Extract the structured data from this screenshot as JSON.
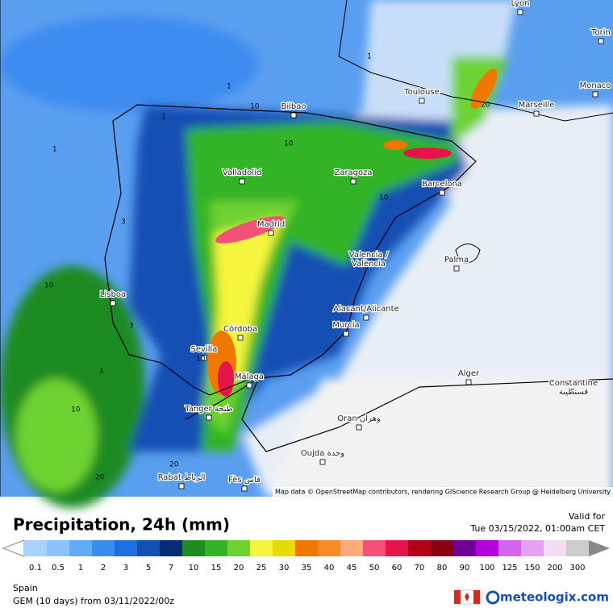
{
  "header": {
    "title": "Precipitation, 24h (mm)",
    "valid_label": "Valid for",
    "valid_time": "Tue 03/15/2022, 01:00am CET"
  },
  "map": {
    "attribution": "Map data © OpenStreetMap contributors, rendering GIScience Research Group @ Heidelberg University",
    "cities": [
      "Lyon",
      "Torin",
      "Monaco",
      "Toulouse",
      "Marseille",
      "Bilbao",
      "Valladolid",
      "Zaragoza",
      "Barcelona",
      "Madrid",
      "Palma",
      "Valencia /\nValència",
      "Lisboa",
      "Alacant/Alicante",
      "Murcia",
      "Córdoba",
      "Sevilla",
      "Alger",
      "Málaga",
      "Constantine\nقسنطينة",
      "Tanger طنجة",
      "Oran وهران",
      "Oujda وجدة",
      "Rabat الرباط",
      "Fès فاس"
    ],
    "contour_labels": [
      "1",
      "1",
      "1",
      "10",
      "10",
      "20",
      "10",
      "1",
      "10",
      "10",
      "3",
      "1",
      "10",
      "20",
      "20",
      "3"
    ]
  },
  "legend": {
    "levels": [
      "0.1",
      "0.5",
      "1",
      "2",
      "3",
      "5",
      "7",
      "10",
      "15",
      "20",
      "25",
      "30",
      "35",
      "40",
      "45",
      "50",
      "60",
      "70",
      "80",
      "90",
      "100",
      "125",
      "150",
      "200",
      "300"
    ],
    "colors": [
      "#a8d2ff",
      "#8cc3ff",
      "#64aaf5",
      "#3c8cf0",
      "#1e6ee1",
      "#1450b4",
      "#0a2a78",
      "#1e8c23",
      "#32b428",
      "#6ed232",
      "#f5f53c",
      "#e6dc00",
      "#f07800",
      "#f58c28",
      "#ffaa78",
      "#f55078",
      "#e6144b",
      "#b40014",
      "#8c0014",
      "#6e0096",
      "#b400dc",
      "#d264f0",
      "#e6a0f0",
      "#f5dcf5",
      "#cccccc"
    ]
  },
  "footer": {
    "region": "Spain",
    "model": "GEM (10 days) from 03/11/2022/00z",
    "brand": "meteologix.com"
  }
}
